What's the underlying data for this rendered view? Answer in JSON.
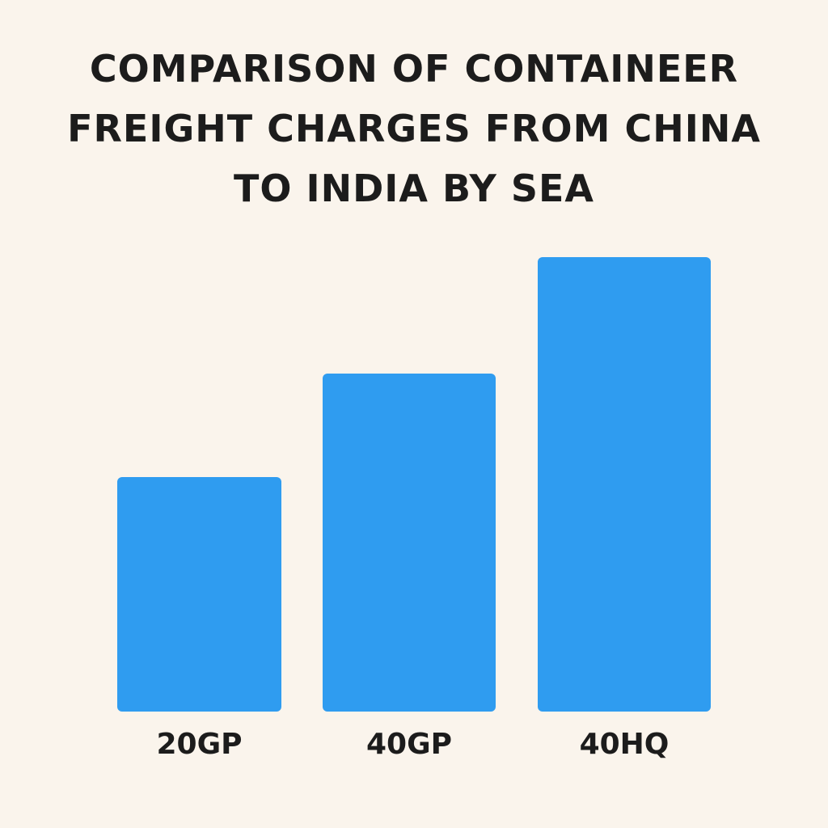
{
  "chart_data": {
    "type": "bar",
    "title_lines": [
      "COMPARISON OF CONTAINEER",
      "FREIGHT CHARGES FROM CHINA",
      "TO INDIA BY SEA"
    ],
    "categories": [
      "20GP",
      "40GP",
      "40HQ"
    ],
    "values": [
      290,
      418,
      562
    ],
    "ylim": [
      0,
      562
    ],
    "grid": false,
    "legend": "none",
    "bar_color": "#2f9cf0",
    "background_color": "#faf4ec",
    "text_color": "#1c1c1c"
  }
}
